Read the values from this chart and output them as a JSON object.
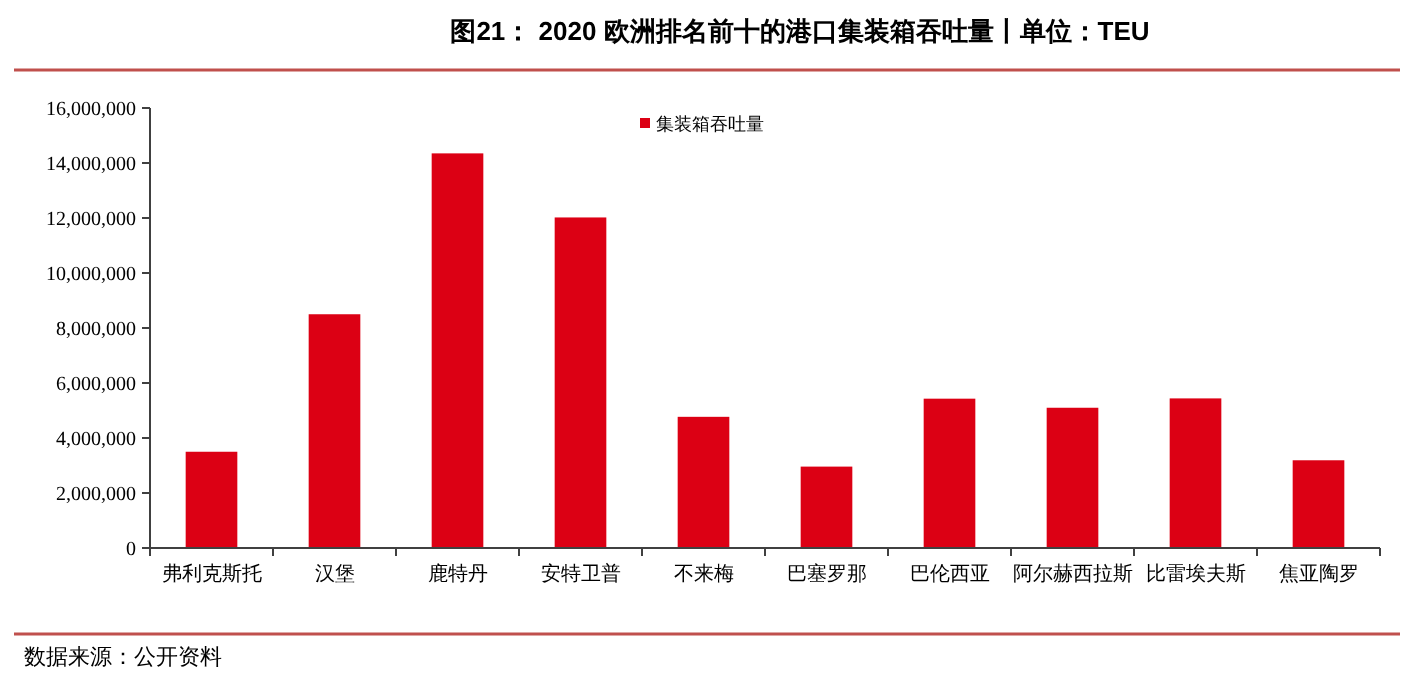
{
  "chart_data": {
    "type": "bar",
    "title": "图21：  2020 欧洲排名前十的港口集装箱吞吐量丨单位：TEU",
    "categories": [
      "弗利克斯托",
      "汉堡",
      "鹿特丹",
      "安特卫普",
      "不来梅",
      "巴塞罗那",
      "巴伦西亚",
      "阿尔赫西拉斯",
      "比雷埃夫斯",
      "焦亚陶罗"
    ],
    "series": [
      {
        "name": "集装箱吞吐量",
        "color": "#dc0014",
        "values": [
          3500000,
          8500000,
          14350000,
          12020000,
          4770000,
          2960000,
          5430000,
          5100000,
          5440000,
          3190000
        ]
      }
    ],
    "ylim": [
      0,
      16000000
    ],
    "yticks": [
      {
        "value": 0,
        "label": "0"
      },
      {
        "value": 2000000,
        "label": "2,000,000"
      },
      {
        "value": 4000000,
        "label": "4,000,000"
      },
      {
        "value": 6000000,
        "label": "6,000,000"
      },
      {
        "value": 8000000,
        "label": "8,000,000"
      },
      {
        "value": 10000000,
        "label": "10,000,000"
      },
      {
        "value": 12000000,
        "label": "12,000,000"
      },
      {
        "value": 14000000,
        "label": "14,000,000"
      },
      {
        "value": 16000000,
        "label": "16,000,000"
      }
    ],
    "grid": false,
    "legend": "top",
    "annotations": [
      "数据来源：公开资料"
    ]
  }
}
